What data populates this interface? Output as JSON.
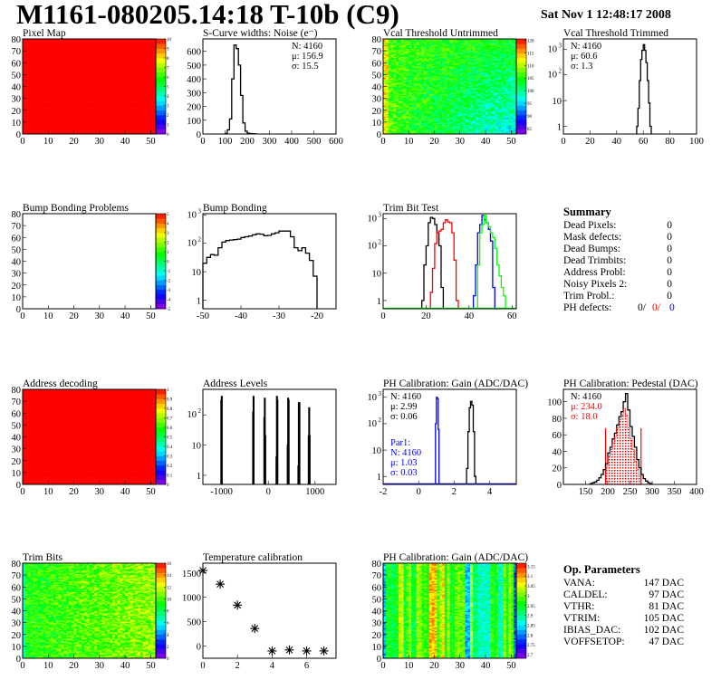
{
  "header": {
    "title": "M1161-080205.14:18 T-10b (C9)",
    "date": "Sat Nov  1 12:48:17 2008"
  },
  "summary": {
    "title": "Summary",
    "rows": [
      {
        "label": "Dead Pixels:",
        "value": "0"
      },
      {
        "label": "Mask defects:",
        "value": "0"
      },
      {
        "label": "Dead Bumps:",
        "value": "0"
      },
      {
        "label": "Dead Trimbits:",
        "value": "0"
      },
      {
        "label": "Address Probl:",
        "value": "0"
      },
      {
        "label": "Noisy Pixels 2:",
        "value": "0"
      },
      {
        "label": "Trim Probl.:",
        "value": "0"
      }
    ],
    "ph_defects": {
      "label": "PH defects:",
      "v1": "0/",
      "v2": "0/",
      "v3": "0"
    }
  },
  "op_parameters": {
    "title": "Op. Parameters",
    "rows": [
      {
        "label": "VANA:",
        "value": "147 DAC"
      },
      {
        "label": "CALDEL:",
        "value": "97 DAC"
      },
      {
        "label": "VTHR:",
        "value": "81 DAC"
      },
      {
        "label": "VTRIM:",
        "value": "105 DAC"
      },
      {
        "label": "IBIAS_DAC:",
        "value": "102 DAC"
      },
      {
        "label": "VOFFSETOP:",
        "value": "47 DAC"
      }
    ]
  },
  "colors": {
    "red": "#ff0000",
    "blue": "#0000ff",
    "green": "#00ff00",
    "black": "#000000"
  },
  "chart_data": [
    {
      "id": "pixel-map",
      "type": "heatmap",
      "title": "Pixel Map",
      "xlim": [
        0,
        52
      ],
      "ylim": [
        0,
        80
      ],
      "xticks": [
        0,
        10,
        20,
        30,
        40,
        50
      ],
      "yticks": [
        0,
        10,
        20,
        30,
        40,
        50,
        60,
        70,
        80
      ],
      "zlim": [
        0,
        10
      ],
      "zticks": [
        "0",
        "1",
        "2",
        "3",
        "4",
        "5",
        "6",
        "7",
        "8",
        "9",
        "10"
      ],
      "uniform_value": 10
    },
    {
      "id": "s-curve",
      "type": "bar",
      "title": "S-Curve widths: Noise (e⁻)",
      "xlim": [
        0,
        600
      ],
      "ylim": [
        0,
        690
      ],
      "log": false,
      "xticks": [
        0,
        100,
        200,
        300,
        400,
        500,
        600
      ],
      "yticks": [
        0,
        100,
        200,
        300,
        400,
        500,
        600
      ],
      "stats": [
        "N: 4160",
        "μ: 156.9",
        "σ: 15.5"
      ],
      "series": [
        {
          "color": "#000000",
          "start": 100,
          "step": 10,
          "values": [
            3,
            30,
            110,
            400,
            645,
            620,
            500,
            280,
            80,
            20,
            6,
            3,
            2,
            1
          ]
        }
      ]
    },
    {
      "id": "vcal-untrimmed",
      "type": "heatmap",
      "title": "Vcal Threshold Untrimmed",
      "xlim": [
        0,
        52
      ],
      "ylim": [
        0,
        80
      ],
      "xticks": [
        0,
        10,
        20,
        30,
        40,
        50
      ],
      "yticks": [
        0,
        10,
        20,
        30,
        40,
        50,
        60,
        70,
        80
      ],
      "zlim": [
        82,
        122
      ],
      "zticks": [
        "85",
        "90",
        "95",
        "100",
        "105",
        "110",
        "115",
        "120"
      ]
    },
    {
      "id": "vcal-trimmed",
      "type": "bar",
      "title": "Vcal Threshold Trimmed",
      "xlim": [
        0,
        100
      ],
      "ylim": [
        0.5,
        2500
      ],
      "log": true,
      "xticks": [
        0,
        20,
        40,
        60,
        80,
        100
      ],
      "yticks": [
        1,
        10,
        100,
        1000
      ],
      "stats": [
        "N: 4160",
        "μ: 60.6",
        "σ:  1.3"
      ],
      "series": [
        {
          "color": "#000000",
          "start": 55,
          "step": 1,
          "values": [
            1,
            5,
            60,
            400,
            900,
            1500,
            900,
            300,
            60,
            8,
            1
          ]
        }
      ]
    },
    {
      "id": "bump-problems",
      "type": "heatmap",
      "title": "Bump Bonding Problems",
      "xlim": [
        0,
        52
      ],
      "ylim": [
        0,
        80
      ],
      "xticks": [
        0,
        10,
        20,
        30,
        40,
        50
      ],
      "yticks": [
        0,
        10,
        20,
        30,
        40,
        50,
        60,
        70,
        80
      ],
      "zlim": [
        -5,
        5
      ],
      "zticks": [
        "-5",
        "-4",
        "-3",
        "-2",
        "-1",
        "0",
        "1",
        "2",
        "3",
        "4",
        "5"
      ],
      "empty": true
    },
    {
      "id": "bump-bonding",
      "type": "bar",
      "title": "Bump Bonding",
      "xlim": [
        -50,
        -15
      ],
      "ylim": [
        0.5,
        1100
      ],
      "log": true,
      "xticks": [
        -50,
        -40,
        -30,
        -20
      ],
      "yticks": [
        1,
        10,
        100,
        1000
      ],
      "series": [
        {
          "color": "#000000",
          "start": -50,
          "step": 1,
          "values": [
            20,
            32,
            40,
            38,
            70,
            110,
            125,
            130,
            135,
            140,
            160,
            170,
            180,
            200,
            215,
            210,
            185,
            190,
            215,
            235,
            270,
            270,
            270,
            170,
            70,
            55,
            70,
            45,
            25,
            7
          ]
        }
      ]
    },
    {
      "id": "trim-bit-test",
      "type": "bar",
      "title": "Trim Bit Test",
      "xlim": [
        0,
        62
      ],
      "ylim": [
        0.5,
        1500
      ],
      "log": true,
      "xticks": [
        0,
        20,
        40,
        60
      ],
      "yticks": [
        1,
        10,
        100,
        1000
      ],
      "series": [
        {
          "color": "#000000",
          "start": 18,
          "step": 1,
          "values": [
            1,
            20,
            100,
            700,
            1100,
            1000,
            600,
            300,
            100,
            3
          ]
        },
        {
          "color": "#ff0000",
          "start": 22,
          "step": 1,
          "values": [
            2,
            15,
            120,
            300,
            350,
            400,
            700,
            900,
            750,
            700,
            300,
            30,
            1
          ]
        },
        {
          "color": "#0000ff",
          "start": 42,
          "step": 1,
          "values": [
            1.5,
            20,
            300,
            600,
            1300,
            900,
            700,
            400,
            150,
            3,
            0
          ]
        },
        {
          "color": "#00ff00",
          "start": 44,
          "step": 1,
          "values": [
            20,
            300,
            600,
            1300,
            700,
            500,
            300,
            200,
            80,
            20,
            8,
            3,
            1.5
          ]
        }
      ]
    },
    {
      "id": "summary-pad",
      "type": "text"
    },
    {
      "id": "address-decoding",
      "type": "heatmap",
      "title": "Address decoding",
      "xlim": [
        0,
        52
      ],
      "ylim": [
        0,
        80
      ],
      "xticks": [
        0,
        10,
        20,
        30,
        40,
        50
      ],
      "yticks": [
        0,
        10,
        20,
        30,
        40,
        50,
        60,
        70,
        80
      ],
      "zlim": [
        0,
        1
      ],
      "zticks": [
        "0",
        "0.1",
        "0.2",
        "0.3",
        "0.4",
        "0.5",
        "0.6",
        "0.7",
        "0.8",
        "0.9",
        "1"
      ],
      "uniform_value": 1
    },
    {
      "id": "address-levels",
      "type": "bar",
      "title": "Address Levels",
      "xlim": [
        -1400,
        1450
      ],
      "ylim": [
        0.5,
        700
      ],
      "log": true,
      "xticks": [
        -1000,
        0,
        1000
      ],
      "yticks": [
        1,
        10,
        100
      ],
      "series": [
        {
          "color": "#000000",
          "start": -1010,
          "step": 10,
          "values": [
            300,
            400
          ]
        },
        {
          "color": "#000000",
          "start": -330,
          "step": 10,
          "values": [
            120,
            400
          ]
        },
        {
          "color": "#000000",
          "start": -90,
          "step": 10,
          "values": [
            80,
            350,
            20
          ]
        },
        {
          "color": "#000000",
          "start": 170,
          "step": 10,
          "values": [
            4,
            400,
            300
          ]
        },
        {
          "color": "#000000",
          "start": 410,
          "step": 10,
          "values": [
            10,
            350,
            300
          ]
        },
        {
          "color": "#000000",
          "start": 640,
          "step": 10,
          "values": [
            2,
            250,
            250
          ]
        },
        {
          "color": "#000000",
          "start": 860,
          "step": 10,
          "values": [
            20,
            170,
            20
          ]
        }
      ]
    },
    {
      "id": "ph-gain",
      "type": "bar",
      "title": "PH Calibration: Gain (ADC/DAC)",
      "xlim": [
        -2,
        5.5
      ],
      "ylim": [
        0.5,
        2000
      ],
      "log": true,
      "xticks": [
        -2,
        0,
        2,
        4
      ],
      "yticks": [
        1,
        10,
        100,
        1000
      ],
      "stats": [
        "N: 4160",
        "μ: 2.99",
        "σ: 0.06"
      ],
      "stats2": [
        "Par1:",
        "N: 4160",
        "μ: 1.03",
        "σ: 0.03"
      ],
      "series": [
        {
          "color": "#0000ff",
          "start": 0.95,
          "step": 0.05,
          "values": [
            100,
            1000,
            900,
            60
          ]
        },
        {
          "color": "#000000",
          "start": 2.7,
          "step": 0.075,
          "values": [
            2,
            50,
            400,
            700,
            500,
            50,
            1
          ]
        }
      ]
    },
    {
      "id": "ph-pedestal",
      "type": "bar",
      "title": "PH Calibration: Pedestal (DAC)",
      "xlim": [
        100,
        400
      ],
      "ylim": [
        0,
        115
      ],
      "log": false,
      "xticks": [
        150,
        200,
        250,
        300,
        350,
        400
      ],
      "yticks": [
        0,
        20,
        40,
        60,
        80,
        100
      ],
      "stats": [
        "N: 4160",
        "μ: 234.0",
        "σ: 18.0"
      ],
      "fit_range": [
        195,
        275
      ],
      "fit_line_height": 68,
      "series": [
        {
          "color": "#000000",
          "start": 160,
          "step": 5,
          "values": [
            1,
            2,
            3,
            5,
            8,
            12,
            18,
            25,
            38,
            45,
            55,
            62,
            72,
            82,
            88,
            100,
            110,
            90,
            70,
            58,
            45,
            30,
            20,
            12,
            7,
            4,
            2,
            1
          ]
        },
        {
          "color": "#ff0000",
          "hatch": true,
          "start": 195,
          "step": 5,
          "values": [
            22,
            34,
            42,
            50,
            58,
            68,
            78,
            84,
            92,
            84,
            68,
            55,
            42,
            28,
            18,
            10
          ]
        }
      ]
    },
    {
      "id": "trim-bits",
      "type": "heatmap",
      "title": "Trim Bits",
      "xlim": [
        0,
        52
      ],
      "ylim": [
        0,
        80
      ],
      "xticks": [
        0,
        10,
        20,
        30,
        40,
        50
      ],
      "yticks": [
        0,
        10,
        20,
        30,
        40,
        50,
        60,
        70,
        80
      ],
      "zlim": [
        0,
        16
      ],
      "zticks": [
        "0",
        "2",
        "4",
        "6",
        "8",
        "10",
        "12",
        "14",
        "16"
      ]
    },
    {
      "id": "temperature",
      "type": "scatter",
      "title": "Temperature calibration",
      "xlim": [
        0,
        7.7
      ],
      "ylim": [
        -250,
        1700
      ],
      "xticks": [
        0,
        2,
        4,
        6
      ],
      "yticks": [
        0,
        500,
        1000,
        1500
      ],
      "x": [
        0,
        1,
        2,
        3,
        4,
        5,
        6,
        7
      ],
      "y": [
        1550,
        1270,
        840,
        360,
        -100,
        -80,
        -100,
        -100
      ]
    },
    {
      "id": "ph-gain-map",
      "type": "heatmap",
      "title": "PH Calibration: Gain (ADC/DAC)",
      "xlim": [
        0,
        52
      ],
      "ylim": [
        0,
        80
      ],
      "xticks": [
        0,
        10,
        20,
        30,
        40,
        50
      ],
      "yticks": [
        0,
        10,
        20,
        30,
        40,
        50,
        60,
        70,
        80
      ],
      "zlim": [
        2.68,
        3.17
      ],
      "zticks": [
        "2.7",
        "2.75",
        "2.8",
        "2.85",
        "2.9",
        "2.95",
        "3",
        "3.05",
        "3.1",
        "3.15"
      ]
    },
    {
      "id": "op-pad",
      "type": "text"
    }
  ]
}
